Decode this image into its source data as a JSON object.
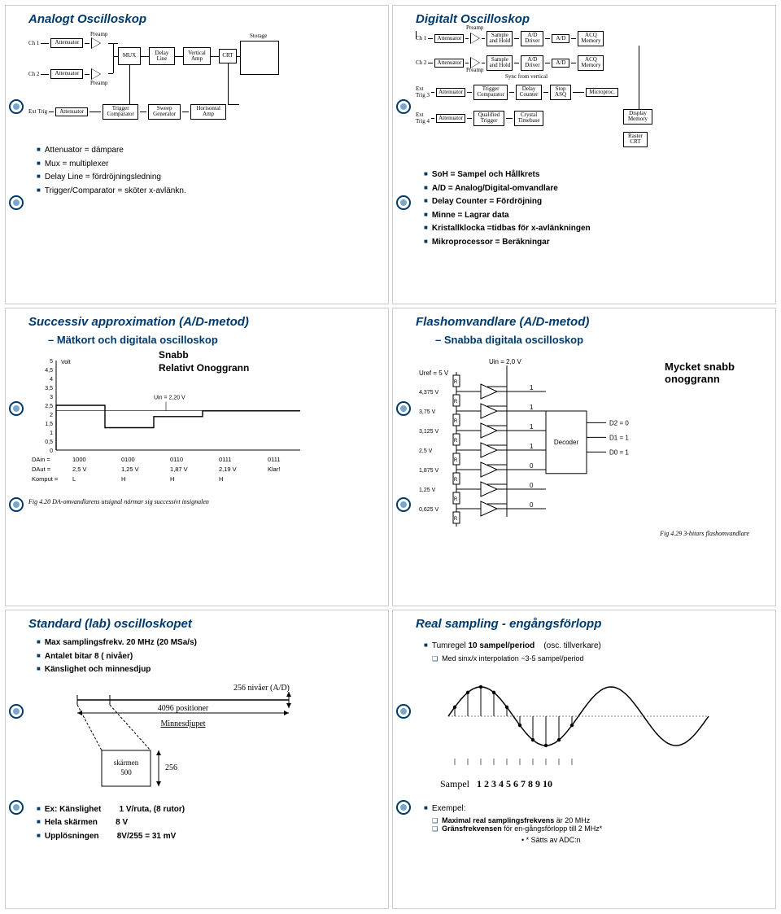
{
  "p1": {
    "title": "Analogt Oscilloskop",
    "labels": {
      "ch1": "Ch 1",
      "ch2": "Ch 2",
      "exttrig": "Ext Trig",
      "atten": "Attenuator",
      "preamp": "Preamp",
      "mux": "MUX",
      "delay": "Delay\nLine",
      "vamp": "Vertical\nAmp",
      "crt": "CRT",
      "storage": "Storage",
      "trigcomp": "Trigger\nComparator",
      "sweep": "Sweep\nGenerator",
      "hamp": "Horisontal\nAmp"
    },
    "bullets": [
      "Attenuator = dämpare",
      "Mux = multiplexer",
      "Delay Line = fördröjningsledning",
      "Trigger/Comparator = sköter x-avlänkn."
    ]
  },
  "p2": {
    "title": "Digitalt Oscilloskop",
    "labels": {
      "ch1": "Ch 1",
      "ch2": "Ch 2",
      "et3": "Ext\nTrig 3",
      "et4": "Ext\nTrig 4",
      "atten": "Attenuator",
      "preamp": "Preamp",
      "sah": "Sample\nand Hold",
      "addrv": "A/D\nDriver",
      "ad": "A/D",
      "acq": "ACQ\nMemory",
      "sync": "Sync from vertical",
      "trigcomp": "Trigger\nComparator",
      "dcount": "Delay\nCounter",
      "stop": "Stop\nASQ",
      "micro": "Microproc.",
      "qtrig": "Qualified\nTrigger",
      "xtal": "Crystal\nTimebase",
      "dmem": "Display\nMemory",
      "raster": "Raster\nCRT"
    },
    "bullets": [
      "SoH = Sampel och Hållkrets",
      "A/D = Analog/Digital-omvandlare",
      "Delay Counter = Fördröjning",
      "Minne = Lagrar data",
      "Kristallklocka =tidbas för x-avlänkningen",
      "Mikroprocessor = Beräkningar"
    ]
  },
  "p3": {
    "title": "Successiv approximation  (A/D-metod)",
    "subtitle": "– Mätkort och digitala oscilloskop",
    "chart": {
      "snabb": "Snabb",
      "relativ": "Relativt Onoggrann",
      "uin": "Uin = 2,20 V",
      "volt": "Volt",
      "ylabels": [
        "5",
        "4,5",
        "4",
        "3,5",
        "3",
        "2,5",
        "2",
        "1,5",
        "1",
        "0,5",
        "0"
      ],
      "rows": [
        [
          "DAin =",
          "1000",
          "0100",
          "0110",
          "0111",
          "0111"
        ],
        [
          "DAut =",
          "2,5 V",
          "1,25 V",
          "1,87 V",
          "2,19 V",
          "Klar!"
        ],
        [
          "Komput =",
          "L",
          "H",
          "H",
          "H",
          ""
        ]
      ],
      "steps": [
        2.5,
        1.25,
        1.87,
        2.19
      ],
      "target": 2.2,
      "caption": "Fig 4.20  DA-omvandlarens utsignal närmar sig successivt insignalen"
    }
  },
  "p4": {
    "title": "Flashomvandlare (A/D-metod)",
    "subtitle": "– Snabba digitala oscilloskop",
    "annot": "Mycket snabb\nonoggrann",
    "diagram": {
      "uin": "Uin = 2,0 V",
      "uref": "Uref = 5 V",
      "levels": [
        "4,375 V",
        "3,75 V",
        "3,125 V",
        "2,5 V",
        "1,875 V",
        "1,25 V",
        "0,625 V"
      ],
      "bits": [
        "1",
        "1",
        "1",
        "1",
        "0",
        "0",
        "0"
      ],
      "decoder": "Decoder",
      "outs": [
        "D2 = 0",
        "D1 = 1",
        "D0 = 1"
      ],
      "caption": "Fig 4.29  3-bitars flashomvandlare"
    }
  },
  "p5": {
    "title": "Standard (lab) oscilloskopet",
    "bullets1": [
      "Max samplingsfrekv. 20 MHz (20 MSa/s)",
      "Antalet bitar 8   ( nivåer)",
      "Känslighet och minnesdjup"
    ],
    "fig": {
      "pos": "4096 positioner",
      "depth": "Minnesdjupet",
      "levels": "256 nivåer (A/D)",
      "screen": "skärmen\n500",
      "n256": "256"
    },
    "specs": [
      [
        "Ex: Känslighet",
        "1 V/ruta, (8 rutor)"
      ],
      [
        "Hela skärmen",
        "8 V"
      ],
      [
        "Upplösningen",
        "8V/255 =  31 mV"
      ]
    ]
  },
  "p6": {
    "title": "Real sampling - engångsförlopp",
    "bullets": [
      "Tumregel 10 sampel/period    (osc. tillverkare)"
    ],
    "sub": [
      "Med sinx/x interpolation ~3-5 sampel/period"
    ],
    "sample_label": "Sampel",
    "sample_nums": "1 2 3 4 5 6 7 8 9 10",
    "ex": "Exempel:",
    "ex_bullets": [
      "Maximal real samplingsfrekvens är 20 MHz",
      "Gränsfrekvensen för en-gångsförlopp till 2 MHz*"
    ],
    "footnote": "* Sätts av ADC:n"
  },
  "colors": {
    "accent": "#003a6b",
    "grid": "#000000",
    "bg": "#ffffff"
  }
}
